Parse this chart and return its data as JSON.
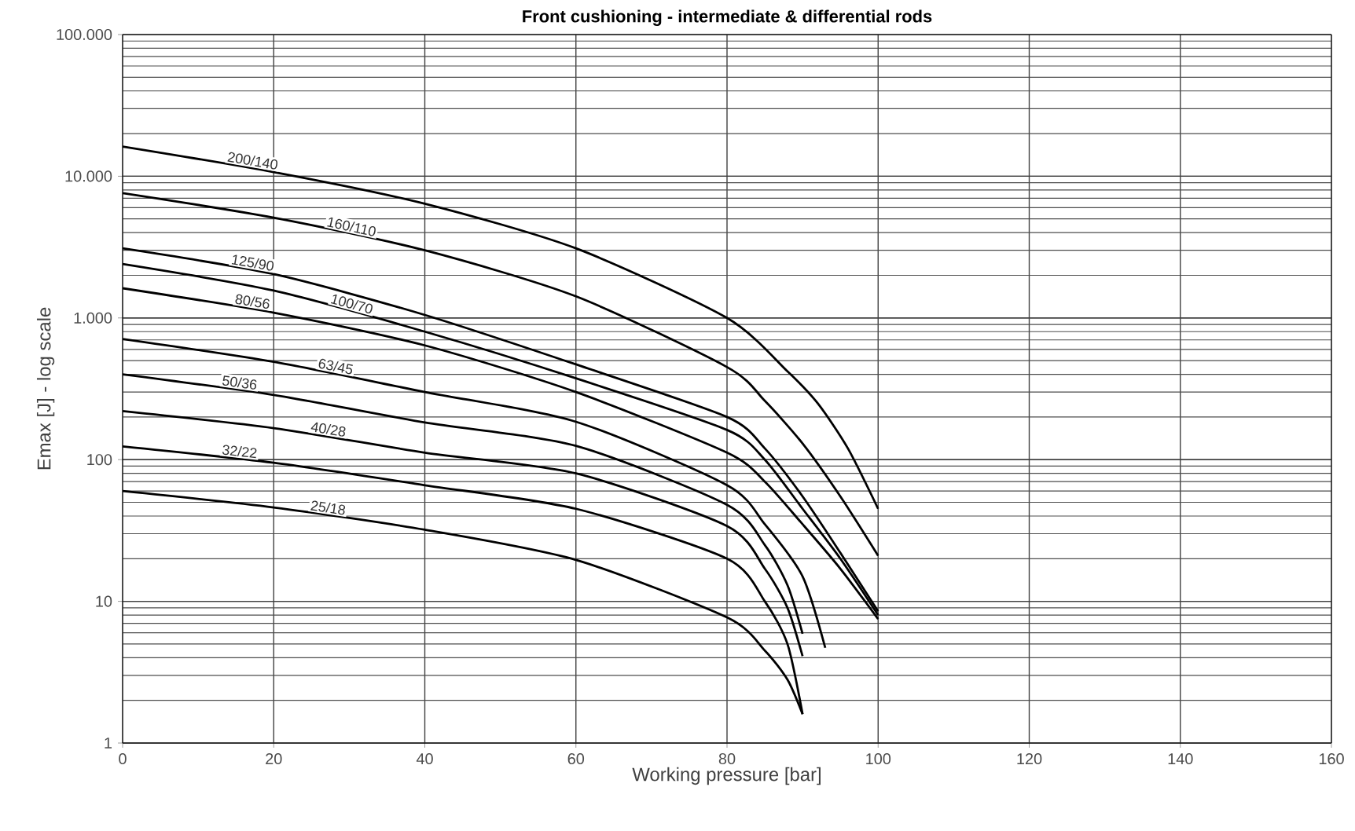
{
  "chart_data": {
    "type": "line",
    "title": "Front cushioning - intermediate & differential rods",
    "xlabel": "Working pressure [bar]",
    "ylabel": "Emax [J] - log scale",
    "log": "y",
    "grid": true,
    "marker": "none",
    "line_style": "solid",
    "xlim": [
      0,
      160
    ],
    "xticks": [
      0,
      20,
      40,
      60,
      80,
      100,
      120,
      140,
      160
    ],
    "ylim": [
      1,
      100000
    ],
    "yticks": [
      1,
      10,
      100,
      {
        "value": 1000,
        "label": "1.000"
      },
      {
        "value": 10000,
        "label": "10.000"
      },
      {
        "value": 100000,
        "label": "100.000"
      }
    ],
    "series": [
      {
        "name": "200/140",
        "color": "#000000",
        "x": [
          0,
          20,
          40,
          60,
          80,
          88,
          92,
          96,
          100
        ],
        "values": [
          16200,
          10700,
          6400,
          3100,
          1000,
          420,
          250,
          120,
          45
        ]
      },
      {
        "name": "160/110",
        "color": "#000000",
        "x": [
          0,
          20,
          40,
          60,
          80,
          85,
          90,
          95,
          100
        ],
        "values": [
          7600,
          5100,
          3000,
          1420,
          450,
          260,
          130,
          55,
          21
        ]
      },
      {
        "name": "125/90",
        "color": "#000000",
        "x": [
          0,
          20,
          40,
          60,
          80,
          85,
          90,
          95,
          100
        ],
        "values": [
          3100,
          2040,
          1050,
          470,
          200,
          120,
          55,
          22,
          8.5
        ]
      },
      {
        "name": "100/70",
        "color": "#000000",
        "x": [
          0,
          20,
          40,
          60,
          80,
          85,
          90,
          95,
          100
        ],
        "values": [
          2400,
          1560,
          800,
          375,
          162,
          100,
          45,
          20,
          8
        ]
      },
      {
        "name": "80/56",
        "color": "#000000",
        "x": [
          0,
          20,
          40,
          60,
          80,
          85,
          90,
          95,
          100
        ],
        "values": [
          1620,
          1090,
          640,
          300,
          112,
          70,
          35,
          17,
          7.5
        ]
      },
      {
        "name": "63/45",
        "color": "#000000",
        "x": [
          0,
          20,
          40,
          60,
          80,
          85,
          90,
          93
        ],
        "values": [
          710,
          490,
          300,
          185,
          66,
          35,
          15,
          4.7
        ]
      },
      {
        "name": "50/36",
        "color": "#000000",
        "x": [
          0,
          20,
          40,
          60,
          80,
          85,
          88,
          90
        ],
        "values": [
          400,
          286,
          183,
          125,
          48,
          25,
          13,
          5.9
        ]
      },
      {
        "name": "40/28",
        "color": "#000000",
        "x": [
          0,
          20,
          40,
          60,
          80,
          85,
          88,
          90
        ],
        "values": [
          220,
          167,
          112,
          80,
          34,
          17,
          9,
          4.1
        ]
      },
      {
        "name": "32/22",
        "color": "#000000",
        "x": [
          0,
          20,
          40,
          60,
          80,
          85,
          88,
          90
        ],
        "values": [
          124,
          95,
          66,
          45,
          20,
          10,
          5,
          1.6
        ]
      },
      {
        "name": "25/18",
        "color": "#000000",
        "x": [
          0,
          20,
          40,
          60,
          80,
          85,
          88,
          90
        ],
        "values": [
          60,
          46,
          32,
          19.6,
          7.7,
          4.5,
          2.8,
          1.6
        ]
      }
    ]
  }
}
